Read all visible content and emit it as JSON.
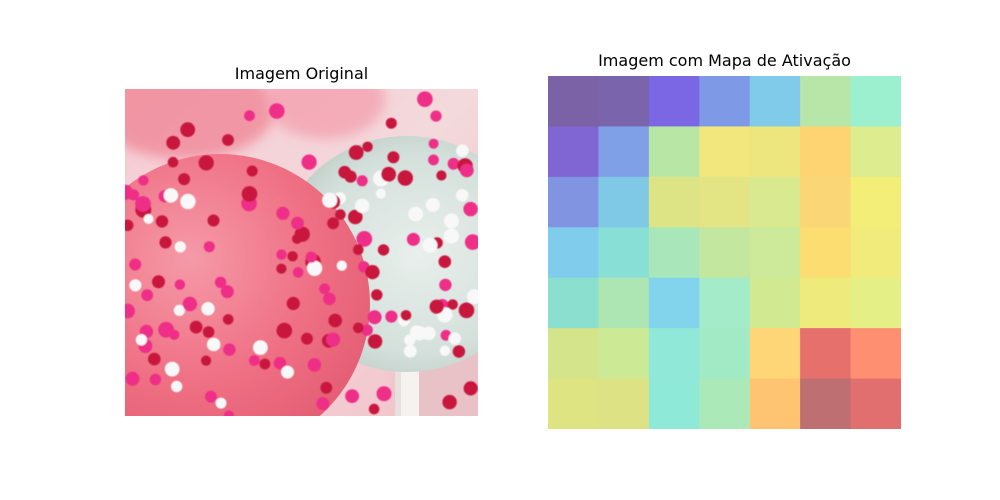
{
  "panels": {
    "left_title": "Imagem Original",
    "right_title": "Imagem com Mapa de Ativação"
  },
  "photo": {
    "subject": "pink and white cake pops covered in sprinkles",
    "colors": {
      "pink_pop": "#f26f84",
      "white_pop": "#d9e4df",
      "sprinkle_red": "#c8143c",
      "sprinkle_magenta": "#ee2f87",
      "sprinkle_white": "#f8f8f8",
      "stick": "#f2f0ee",
      "background": "#f7d6db"
    }
  },
  "heatmap": {
    "rows": 7,
    "cols": 7,
    "cells": [
      [
        "#7b62a6",
        "#7a64ab",
        "#7b66e3",
        "#7e99e6",
        "#80caea",
        "#b8e6a8",
        "#9cefcf"
      ],
      [
        "#7f66d2",
        "#7fa0e6",
        "#b8e6a5",
        "#f2e77d",
        "#ede67f",
        "#fdd471",
        "#dcec8e"
      ],
      [
        "#8094e2",
        "#80c9e6",
        "#dde485",
        "#e3e584",
        "#d9e98f",
        "#fad677",
        "#f3ee78"
      ],
      [
        "#80ccec",
        "#87dfd6",
        "#a9e7bb",
        "#c3e79f",
        "#cde99a",
        "#fbdd71",
        "#f1eb7b"
      ],
      [
        "#8adfcf",
        "#ade5b3",
        "#81d4ec",
        "#a3ebc9",
        "#d1ea92",
        "#eeea7c",
        "#e4ef85"
      ],
      [
        "#d3e48b",
        "#ccea96",
        "#90e9d8",
        "#a2e9c5",
        "#fed677",
        "#e6706c",
        "#fe8f71"
      ],
      [
        "#dde481",
        "#dde385",
        "#8ee9d8",
        "#ace9b9",
        "#fec472",
        "#bd6f72",
        "#e16f6f"
      ]
    ]
  }
}
